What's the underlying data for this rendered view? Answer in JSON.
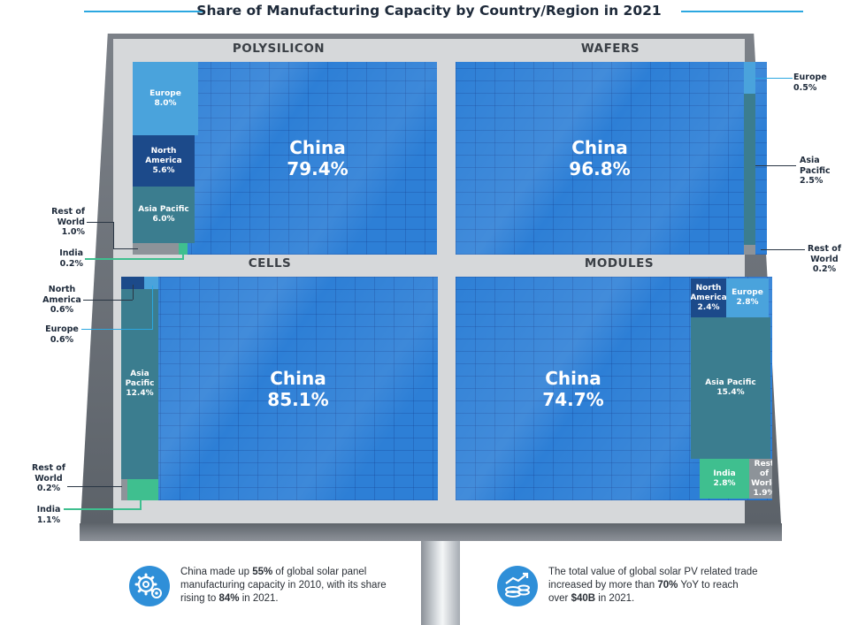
{
  "title": "Share of Manufacturing Capacity by Country/Region in 2021",
  "colors": {
    "china": "#2d7fd6",
    "europe": "#4aa3dc",
    "north_america": "#1c4a8a",
    "asia_pacific": "#3b7d8f",
    "india": "#3fbf8f",
    "rest_of_world": "#8d9399",
    "accent": "#2ba7e0"
  },
  "chart_data": [
    {
      "type": "treemap",
      "title": "POLYSILICON",
      "series": [
        {
          "name": "China",
          "value": 79.4,
          "label": "79.4%"
        },
        {
          "name": "Europe",
          "value": 8.0,
          "label": "8.0%"
        },
        {
          "name": "North America",
          "value": 5.6,
          "label": "5.6%"
        },
        {
          "name": "Asia Pacific",
          "value": 6.0,
          "label": "6.0%"
        },
        {
          "name": "Rest of World",
          "value": 1.0,
          "label": "1.0%"
        },
        {
          "name": "India",
          "value": 0.2,
          "label": "0.2%"
        }
      ]
    },
    {
      "type": "treemap",
      "title": "WAFERS",
      "series": [
        {
          "name": "China",
          "value": 96.8,
          "label": "96.8%"
        },
        {
          "name": "Europe",
          "value": 0.5,
          "label": "0.5%"
        },
        {
          "name": "Asia Pacific",
          "value": 2.5,
          "label": "2.5%"
        },
        {
          "name": "Rest of World",
          "value": 0.2,
          "label": "0.2%"
        }
      ]
    },
    {
      "type": "treemap",
      "title": "CELLS",
      "series": [
        {
          "name": "China",
          "value": 85.1,
          "label": "85.1%"
        },
        {
          "name": "North America",
          "value": 0.6,
          "label": "0.6%"
        },
        {
          "name": "Europe",
          "value": 0.6,
          "label": "0.6%"
        },
        {
          "name": "Asia Pacific",
          "value": 12.4,
          "label": "12.4%"
        },
        {
          "name": "Rest of World",
          "value": 0.2,
          "label": "0.2%"
        },
        {
          "name": "India",
          "value": 1.1,
          "label": "1.1%"
        }
      ]
    },
    {
      "type": "treemap",
      "title": "MODULES",
      "series": [
        {
          "name": "China",
          "value": 74.7,
          "label": "74.7%"
        },
        {
          "name": "North America",
          "value": 2.4,
          "label": "2.4%"
        },
        {
          "name": "Europe",
          "value": 2.8,
          "label": "2.8%"
        },
        {
          "name": "Asia Pacific",
          "value": 15.4,
          "label": "15.4%"
        },
        {
          "name": "India",
          "value": 2.8,
          "label": "2.8%"
        },
        {
          "name": "Rest of World",
          "value": 1.9,
          "label": "1.9%"
        }
      ]
    }
  ],
  "labels": {
    "europe": "Europe",
    "north": "North",
    "america": "America",
    "asia": "Asia",
    "pacific": "Pacific",
    "asia_pacific": "Asia Pacific",
    "rest_of": "Rest of",
    "world": "World",
    "india": "India",
    "china": "China"
  },
  "footer": {
    "left": {
      "icon": "gears-icon",
      "t1": "China made up ",
      "b1": "55%",
      "t2": " of global solar panel manufacturing capacity in 2010, with its share rising to ",
      "b2": "84%",
      "t3": " in 2021."
    },
    "right": {
      "icon": "money-growth-icon",
      "t1": "The total value of global solar PV related trade increased by more than ",
      "b1": "70%",
      "t2": " YoY to reach over ",
      "b2": "$40B",
      "t3": " in 2021."
    }
  }
}
